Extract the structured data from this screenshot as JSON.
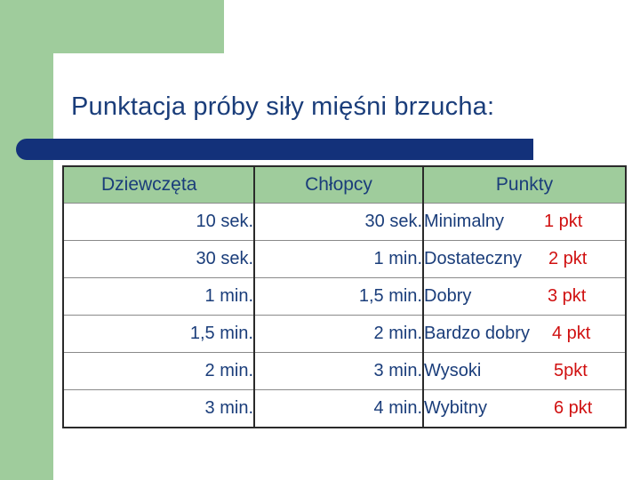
{
  "slide": {
    "title": "Punktacja próby siły mięśni brzucha:"
  },
  "colors": {
    "accent_green": "#9fcc9c",
    "title_bar": "#13317a",
    "text_blue": "#1a3d7a",
    "points_red": "#d01010"
  },
  "table": {
    "headers": {
      "girls": "Dziewczęta",
      "boys": "Chłopcy",
      "points": "Punkty"
    },
    "rows": [
      {
        "girls": "10 sek.",
        "boys": "30 sek.",
        "grade": "Minimalny",
        "points": "1 pkt"
      },
      {
        "girls": "30 sek.",
        "boys": "1 min.",
        "grade": "Dostateczny",
        "points": "2 pkt"
      },
      {
        "girls": "1 min.",
        "boys": "1,5 min.",
        "grade": "Dobry",
        "points": "3 pkt"
      },
      {
        "girls": "1,5 min.",
        "boys": "2 min.",
        "grade": "Bardzo dobry",
        "points": "4 pkt"
      },
      {
        "girls": "2 min.",
        "boys": "3 min.",
        "grade": "Wysoki",
        "points": "5pkt"
      },
      {
        "girls": "3 min.",
        "boys": "4 min.",
        "grade": "Wybitny",
        "points": "6 pkt"
      }
    ]
  }
}
